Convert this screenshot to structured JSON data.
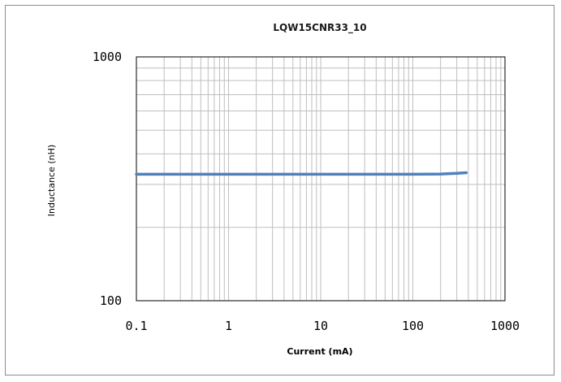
{
  "chart_data": {
    "type": "line",
    "title": "LQW15CNR33_10",
    "xlabel": "Current (mA)",
    "ylabel": "Inductance (nH)",
    "xscale": "log",
    "yscale": "log",
    "xlim": [
      0.1,
      1000
    ],
    "ylim": [
      100,
      1000
    ],
    "xticks": [
      0.1,
      1,
      10,
      100,
      1000
    ],
    "xtick_labels": [
      "0.1",
      "1",
      "10",
      "100",
      "1000"
    ],
    "yticks": [
      100,
      1000
    ],
    "ytick_labels": [
      "100",
      "1000"
    ],
    "grid": true,
    "legend": "none",
    "series": [
      {
        "color": "#4f81bd",
        "x": [
          0.1,
          1,
          10,
          100,
          200,
          300,
          380
        ],
        "y": [
          330,
          330,
          330,
          330,
          331,
          333,
          335
        ]
      }
    ]
  },
  "colors": {
    "frame_border": "#8c8c8c",
    "grid": "#bfbfbf",
    "plot_border": "#000000",
    "series": "#4f81bd"
  }
}
